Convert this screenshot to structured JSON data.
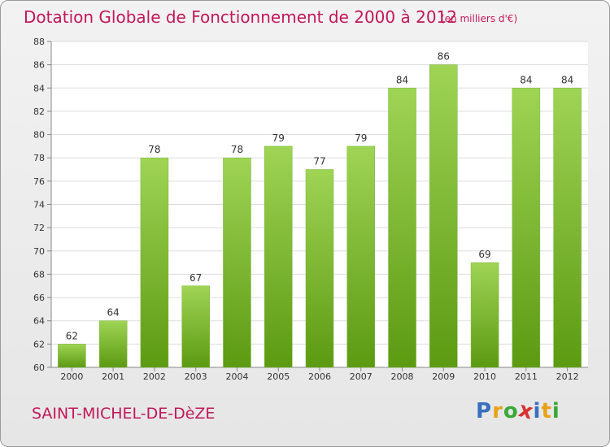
{
  "title": "Dotation Globale de Fonctionnement de 2000 à 2012",
  "subtitle": "(en milliers d'€)",
  "commune": "SAINT-MICHEL-DE-DèZE",
  "logo": {
    "letters": [
      "P",
      "r",
      "o",
      "x",
      "i",
      "t",
      "i"
    ],
    "colors": [
      "#3a6fbf",
      "#e8a21a",
      "#3aa83a",
      "#d93030",
      "#3a6fbf",
      "#e8a21a",
      "#3aa83a"
    ]
  },
  "colors": {
    "bar_top": "#9fd455",
    "bar_bottom": "#5c9a12",
    "title": "#c2185b"
  },
  "chart_data": {
    "type": "bar",
    "categories": [
      "2000",
      "2001",
      "2002",
      "2003",
      "2004",
      "2005",
      "2006",
      "2007",
      "2008",
      "2009",
      "2010",
      "2011",
      "2012"
    ],
    "values": [
      62,
      64,
      78,
      67,
      78,
      79,
      77,
      79,
      84,
      86,
      69,
      84,
      84
    ],
    "ylim": [
      60,
      88
    ],
    "yticks": [
      60,
      62,
      64,
      66,
      68,
      70,
      72,
      74,
      76,
      78,
      80,
      82,
      84,
      86,
      88
    ],
    "grid": true
  }
}
